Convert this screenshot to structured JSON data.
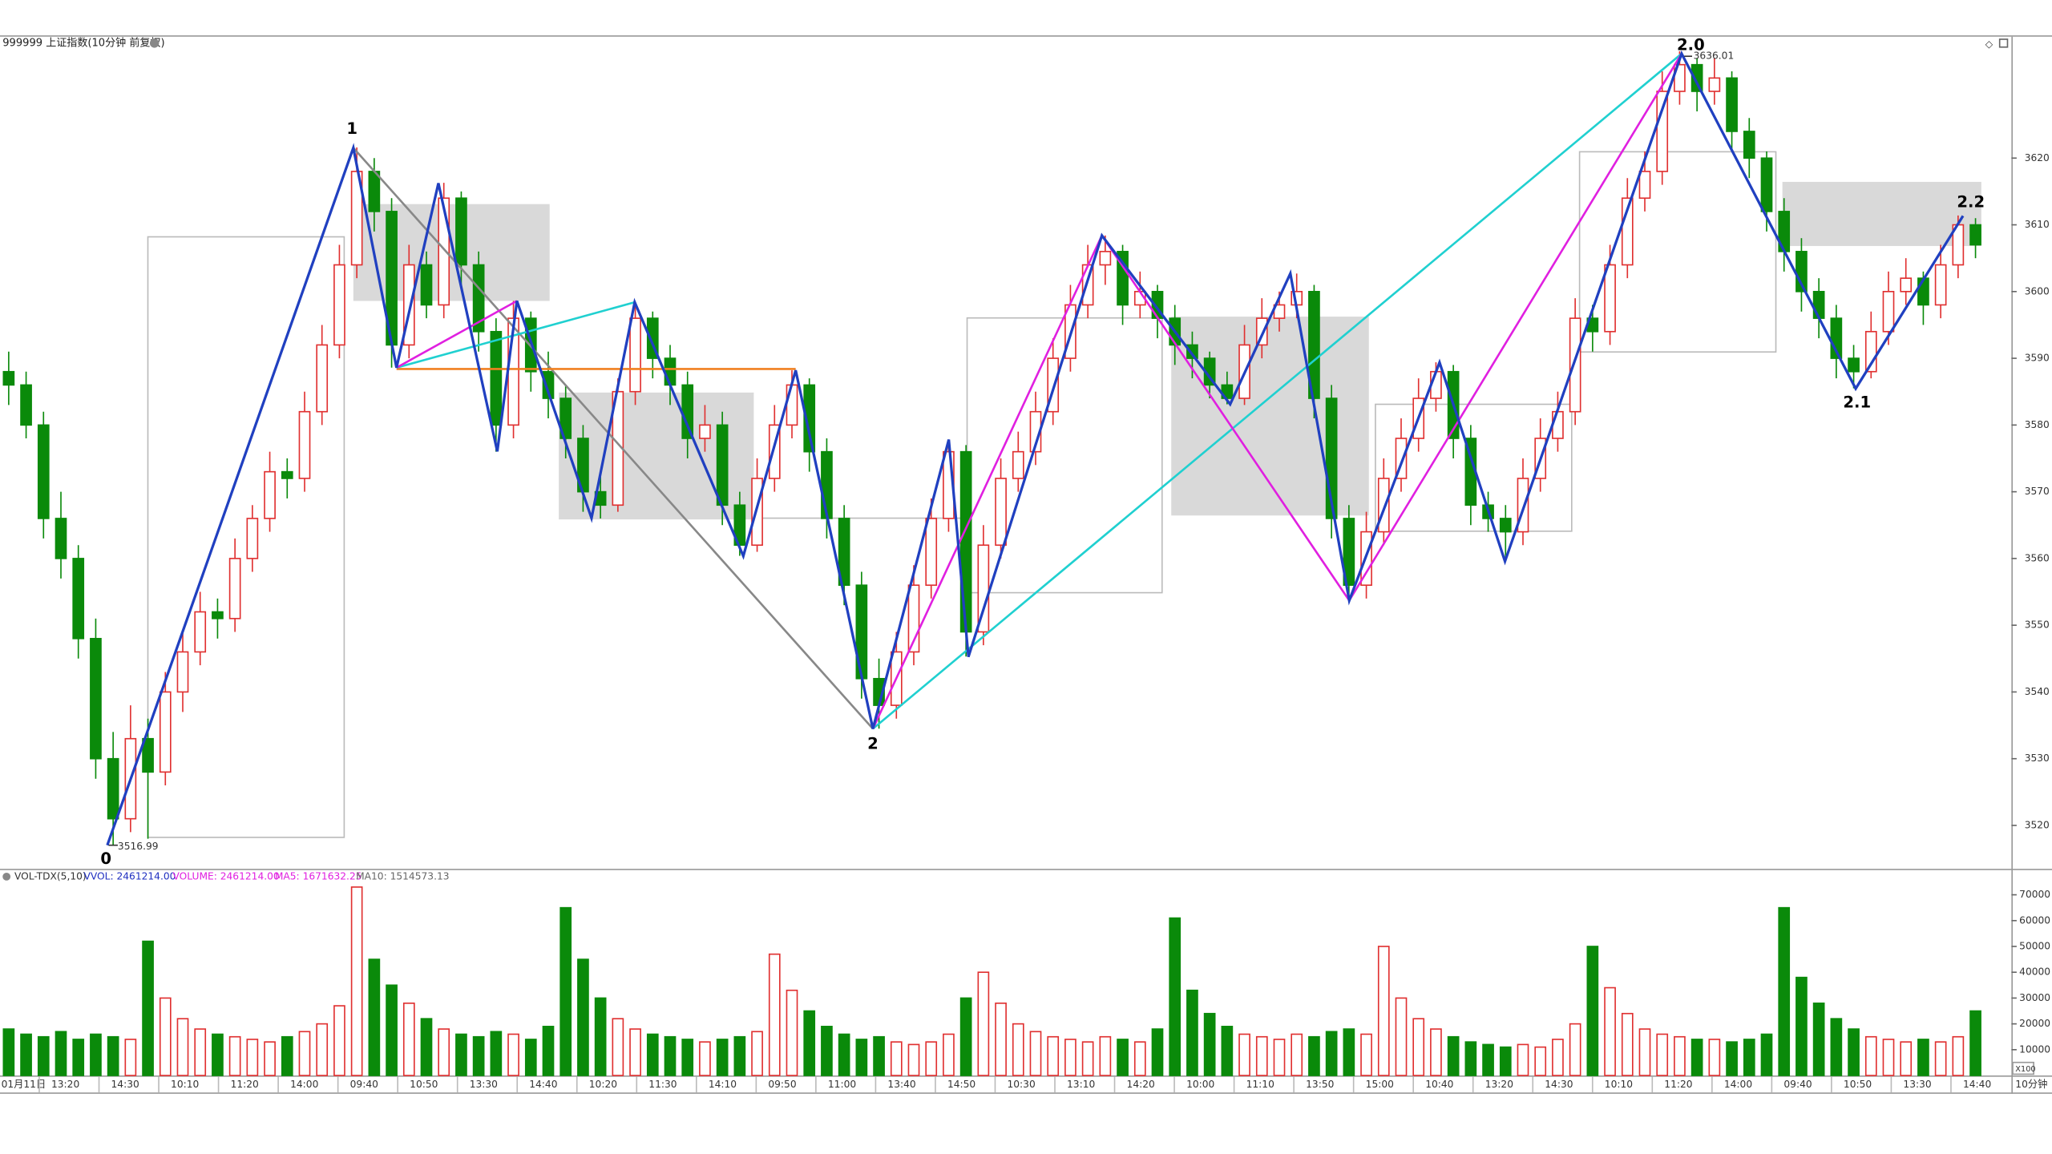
{
  "header": {
    "title": "999999 上证指数(10分钟 前复权)"
  },
  "chart_data": {
    "type": "candlestick",
    "ylim": [
      3513.7,
      3638.2
    ],
    "yticks": [
      3520,
      3530,
      3540,
      3550,
      3560,
      3570,
      3580,
      3590,
      3600,
      3610,
      3620
    ],
    "candles": [
      [
        3588,
        3591,
        3583,
        3586
      ],
      [
        3586,
        3588,
        3578,
        3580
      ],
      [
        3580,
        3582,
        3563,
        3566
      ],
      [
        3566,
        3570,
        3557,
        3560
      ],
      [
        3560,
        3562,
        3545,
        3548
      ],
      [
        3548,
        3551,
        3527,
        3530
      ],
      [
        3530,
        3534,
        3516.99,
        3521
      ],
      [
        3521,
        3538,
        3519,
        3533
      ],
      [
        3533,
        3536,
        3518,
        3528
      ],
      [
        3528,
        3543,
        3526,
        3540
      ],
      [
        3540,
        3549,
        3537,
        3546
      ],
      [
        3546,
        3555,
        3544,
        3552
      ],
      [
        3552,
        3554,
        3548,
        3551
      ],
      [
        3551,
        3563,
        3549,
        3560
      ],
      [
        3560,
        3568,
        3558,
        3566
      ],
      [
        3566,
        3576,
        3564,
        3573
      ],
      [
        3573,
        3575,
        3569,
        3572
      ],
      [
        3572,
        3585,
        3570,
        3582
      ],
      [
        3582,
        3595,
        3580,
        3592
      ],
      [
        3592,
        3607,
        3590,
        3604
      ],
      [
        3604,
        3621.6,
        3602,
        3618
      ],
      [
        3618,
        3620,
        3609,
        3612
      ],
      [
        3612,
        3614,
        3588.6,
        3592
      ],
      [
        3592,
        3607,
        3590,
        3604
      ],
      [
        3604,
        3606,
        3596,
        3598
      ],
      [
        3598,
        3616.3,
        3596,
        3614
      ],
      [
        3614,
        3615,
        3601,
        3604
      ],
      [
        3604,
        3606,
        3591,
        3594
      ],
      [
        3594,
        3596,
        3576,
        3580
      ],
      [
        3580,
        3598.6,
        3578,
        3596
      ],
      [
        3596,
        3597,
        3585,
        3588
      ],
      [
        3588,
        3591,
        3581,
        3584
      ],
      [
        3584,
        3586,
        3575,
        3578
      ],
      [
        3578,
        3580,
        3567,
        3570
      ],
      [
        3570,
        3573,
        3566,
        3568
      ],
      [
        3568,
        3587,
        3567,
        3585
      ],
      [
        3585,
        3598.4,
        3583,
        3596
      ],
      [
        3596,
        3597,
        3587,
        3590
      ],
      [
        3590,
        3592,
        3583,
        3586
      ],
      [
        3586,
        3588,
        3575,
        3578
      ],
      [
        3578,
        3583,
        3576,
        3580
      ],
      [
        3580,
        3582,
        3565,
        3568
      ],
      [
        3568,
        3570,
        3560.4,
        3562
      ],
      [
        3562,
        3575,
        3561,
        3572
      ],
      [
        3572,
        3583,
        3570,
        3580
      ],
      [
        3580,
        3588.2,
        3578,
        3586
      ],
      [
        3586,
        3587,
        3573,
        3576
      ],
      [
        3576,
        3578,
        3563,
        3566
      ],
      [
        3566,
        3568,
        3553,
        3556
      ],
      [
        3556,
        3558,
        3539,
        3542
      ],
      [
        3542,
        3545,
        3534.5,
        3538
      ],
      [
        3538,
        3549,
        3536,
        3546
      ],
      [
        3546,
        3559,
        3544,
        3556
      ],
      [
        3556,
        3569,
        3554,
        3566
      ],
      [
        3566,
        3577.8,
        3564,
        3576
      ],
      [
        3576,
        3577,
        3545.3,
        3549
      ],
      [
        3549,
        3565,
        3547,
        3562
      ],
      [
        3562,
        3575,
        3560,
        3572
      ],
      [
        3572,
        3579,
        3570,
        3576
      ],
      [
        3576,
        3585,
        3574,
        3582
      ],
      [
        3582,
        3593,
        3580,
        3590
      ],
      [
        3590,
        3601,
        3588,
        3598
      ],
      [
        3598,
        3607,
        3596,
        3604
      ],
      [
        3604,
        3608.4,
        3601,
        3606
      ],
      [
        3606,
        3607,
        3595,
        3598
      ],
      [
        3598,
        3603,
        3596,
        3600
      ],
      [
        3600,
        3601,
        3593,
        3596
      ],
      [
        3596,
        3598,
        3589,
        3592
      ],
      [
        3592,
        3594,
        3587,
        3590
      ],
      [
        3590,
        3591,
        3584,
        3586
      ],
      [
        3586,
        3588,
        3583.1,
        3584
      ],
      [
        3584,
        3595,
        3583,
        3592
      ],
      [
        3592,
        3599,
        3590,
        3596
      ],
      [
        3596,
        3600,
        3594,
        3598
      ],
      [
        3598,
        3602.7,
        3596,
        3600
      ],
      [
        3600,
        3601,
        3581,
        3584
      ],
      [
        3584,
        3586,
        3563,
        3566
      ],
      [
        3566,
        3568,
        3553.7,
        3556
      ],
      [
        3556,
        3567,
        3554,
        3564
      ],
      [
        3564,
        3575,
        3562,
        3572
      ],
      [
        3572,
        3581,
        3570,
        3578
      ],
      [
        3578,
        3587,
        3576,
        3584
      ],
      [
        3584,
        3589.4,
        3582,
        3588
      ],
      [
        3588,
        3589,
        3575,
        3578
      ],
      [
        3578,
        3580,
        3565,
        3568
      ],
      [
        3568,
        3570,
        3564,
        3566
      ],
      [
        3566,
        3568,
        3559.6,
        3564
      ],
      [
        3564,
        3575,
        3562,
        3572
      ],
      [
        3572,
        3581,
        3570,
        3578
      ],
      [
        3578,
        3585,
        3576,
        3582
      ],
      [
        3582,
        3599,
        3580,
        3596
      ],
      [
        3596,
        3598,
        3591,
        3594
      ],
      [
        3594,
        3607,
        3592,
        3604
      ],
      [
        3604,
        3617,
        3602,
        3614
      ],
      [
        3614,
        3621,
        3612,
        3618
      ],
      [
        3618,
        3633,
        3616,
        3630
      ],
      [
        3630,
        3636.01,
        3628,
        3634
      ],
      [
        3634,
        3635,
        3627,
        3630
      ],
      [
        3630,
        3635,
        3628,
        3632
      ],
      [
        3632,
        3633,
        3621,
        3624
      ],
      [
        3624,
        3626,
        3617,
        3620
      ],
      [
        3620,
        3621,
        3609,
        3612
      ],
      [
        3612,
        3614,
        3603,
        3606
      ],
      [
        3606,
        3608,
        3597,
        3600
      ],
      [
        3600,
        3602,
        3593,
        3596
      ],
      [
        3596,
        3598,
        3587,
        3590
      ],
      [
        3590,
        3592,
        3585.5,
        3588
      ],
      [
        3588,
        3597,
        3587,
        3594
      ],
      [
        3594,
        3603,
        3592,
        3600
      ],
      [
        3600,
        3605,
        3598,
        3602
      ],
      [
        3602,
        3603,
        3595,
        3598
      ],
      [
        3598,
        3607,
        3596,
        3604
      ],
      [
        3604,
        3611.4,
        3602,
        3610
      ],
      [
        3610,
        3611,
        3605,
        3607
      ]
    ],
    "high_label": 3636.01,
    "low_label": 3516.99,
    "pivot_labels": [
      "0",
      "1",
      "2",
      "2.0",
      "2.1",
      "2.2"
    ],
    "volume": {
      "header": [
        "VOL-TDX(5,10)",
        "VVOL: 2461214.00",
        "VOLUME: 2461214.00",
        "MA5: 1671632.25",
        "MA10: 1514573.13"
      ],
      "unit_label": "X100",
      "ylim": [
        0,
        74000
      ],
      "yticks": [
        10000,
        20000,
        30000,
        40000,
        50000,
        60000,
        70000
      ],
      "values": [
        18000,
        16000,
        15000,
        17000,
        14000,
        16000,
        15000,
        14000,
        52000,
        30000,
        22000,
        18000,
        16000,
        15000,
        14000,
        13000,
        15000,
        17000,
        20000,
        27000,
        73000,
        45000,
        35000,
        28000,
        22000,
        18000,
        16000,
        15000,
        17000,
        16000,
        14000,
        19000,
        65000,
        45000,
        30000,
        22000,
        18000,
        16000,
        15000,
        14000,
        13000,
        14000,
        15000,
        17000,
        47000,
        33000,
        25000,
        19000,
        16000,
        14000,
        15000,
        13000,
        12000,
        13000,
        16000,
        30000,
        40000,
        28000,
        20000,
        17000,
        15000,
        14000,
        13000,
        15000,
        14000,
        13000,
        18000,
        61000,
        33000,
        24000,
        19000,
        16000,
        15000,
        14000,
        16000,
        15000,
        17000,
        18000,
        16000,
        50000,
        30000,
        22000,
        18000,
        15000,
        13000,
        12000,
        11000,
        12000,
        11000,
        14000,
        20000,
        50000,
        34000,
        24000,
        18000,
        16000,
        15000,
        14000,
        14000,
        13000,
        14000,
        16000,
        65000,
        38000,
        28000,
        22000,
        18000,
        15000,
        14000,
        13000,
        14000,
        13000,
        15000,
        25000
      ]
    },
    "x_labels": [
      "01月11日",
      "13:20",
      "14:30",
      "10:10",
      "11:20",
      "14:00",
      "09:40",
      "10:50",
      "13:30",
      "14:40",
      "10:20",
      "11:30",
      "14:10",
      "09:50",
      "11:00",
      "13:40",
      "14:50",
      "10:30",
      "13:10",
      "14:20",
      "10:00",
      "11:10",
      "13:50",
      "15:00",
      "10:40",
      "13:20",
      "14:30",
      "10:10",
      "11:20",
      "14:00",
      "09:40",
      "10:50",
      "13:30",
      "14:40"
    ],
    "period_label": "10分钟"
  }
}
